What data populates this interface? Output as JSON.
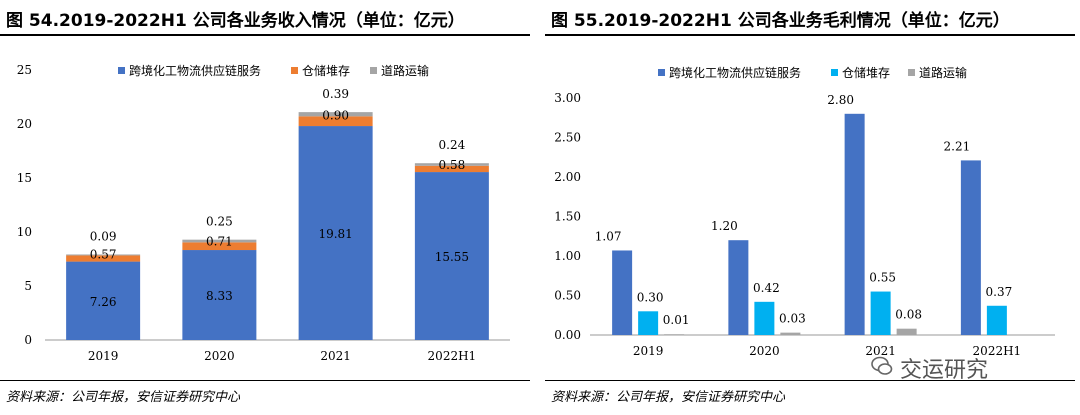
{
  "left": {
    "title": "图 54.2019-2022H1 公司各业务收入情况（单位：亿元）",
    "source": "资料来源：公司年报，安信证券研究中心"
  },
  "right": {
    "title": "图 55.2019-2022H1 公司各业务毛利情况（单位：亿元）",
    "source": "资料来源：公司年报，安信证券研究中心"
  },
  "watermark": "交运研究",
  "colors": {
    "blue": "#4472c4",
    "orange": "#ed7d31",
    "gray": "#a5a5a5",
    "lightblue": "#00b0f0"
  },
  "chart_data": [
    {
      "type": "bar",
      "stacked": true,
      "categories": [
        "2019",
        "2020",
        "2021",
        "2022H1"
      ],
      "series": [
        {
          "name": "跨境化工物流供应链服务",
          "values": [
            7.26,
            8.33,
            19.81,
            15.55
          ]
        },
        {
          "name": "仓储堆存",
          "values": [
            0.57,
            0.71,
            0.9,
            0.58
          ]
        },
        {
          "name": "道路运输",
          "values": [
            0.09,
            0.25,
            0.39,
            0.24
          ]
        }
      ],
      "yticks": [
        "0",
        "5",
        "10",
        "15",
        "20",
        "25"
      ],
      "ylim": [
        0,
        25
      ],
      "legend": "top"
    },
    {
      "type": "bar",
      "stacked": false,
      "categories": [
        "2019",
        "2020",
        "2021",
        "2022H1"
      ],
      "series": [
        {
          "name": "跨境化工物流供应链服务",
          "values": [
            1.07,
            1.2,
            2.8,
            2.21
          ]
        },
        {
          "name": "仓储堆存",
          "values": [
            0.3,
            0.42,
            0.55,
            0.37
          ]
        },
        {
          "name": "道路运输",
          "values": [
            0.01,
            0.03,
            0.08,
            null
          ]
        }
      ],
      "yticks": [
        "0.00",
        "0.50",
        "1.00",
        "1.50",
        "2.00",
        "2.50",
        "3.00"
      ],
      "ylim": [
        0,
        3
      ],
      "legend": "top"
    }
  ]
}
